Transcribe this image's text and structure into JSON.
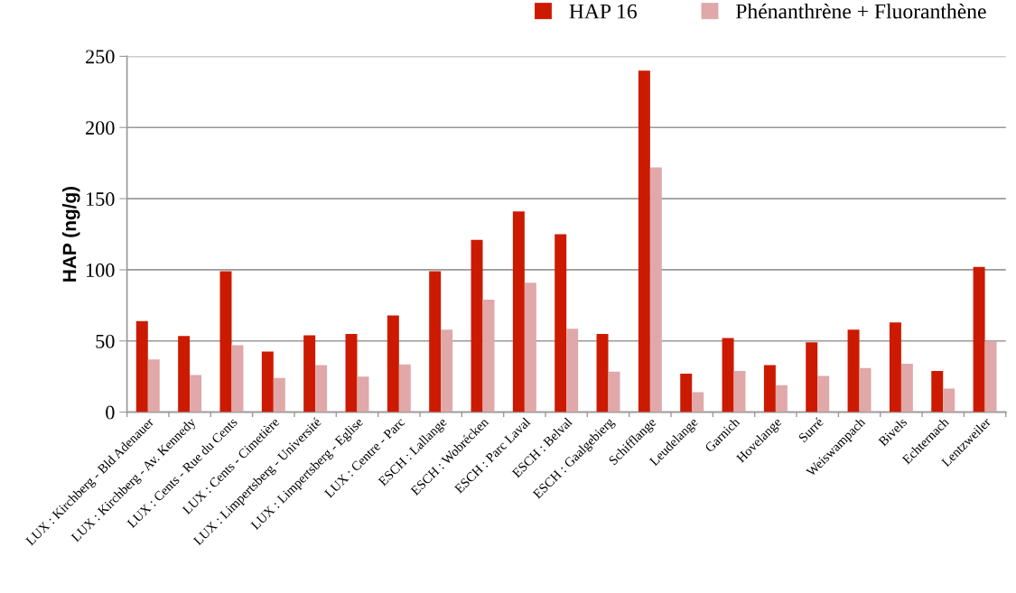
{
  "chart_data": {
    "type": "bar",
    "ylabel": "HAP (ng/g)",
    "categories": [
      "LUX : Kirchberg - Bld Adenauer",
      "LUX : Kirchberg - Av. Kennedy",
      "LUX : Cents - Rue du Cents",
      "LUX : Cents - Cimetière",
      "LUX : Limpertsberg - Université",
      "LUX : Limpertsberg - Eglise",
      "LUX : Centre - Parc",
      "ESCH : Lallange",
      "ESCH : Wobrécken",
      "ESCH : Parc Laval",
      "ESCH : Belval",
      "ESCH : Gaalgebierg",
      "Schifflange",
      "Leudelange",
      "Garnich",
      "Hovelange",
      "Surré",
      "Weiswampach",
      "Bivels",
      "Echternach",
      "Lentzweiler"
    ],
    "series": [
      {
        "name": "HAP 16",
        "color": "#cc1a00",
        "values": [
          64,
          53.5,
          99,
          42.5,
          54,
          55,
          68,
          99,
          121,
          141,
          125,
          55,
          240,
          27,
          52,
          33,
          49,
          58,
          63,
          29,
          102
        ]
      },
      {
        "name": "Phénanthrène + Fluoranthène",
        "color": "#e0a8a8",
        "values": [
          37,
          26,
          47,
          24,
          33,
          25,
          33.5,
          58,
          79,
          91,
          58.5,
          28.5,
          172,
          14,
          29,
          19,
          25.5,
          31,
          34,
          16.5,
          50
        ]
      }
    ],
    "ylim": [
      0,
      250
    ],
    "yticks": [
      0,
      50,
      100,
      150,
      200,
      250
    ],
    "grid": "y",
    "legend": "top right"
  }
}
